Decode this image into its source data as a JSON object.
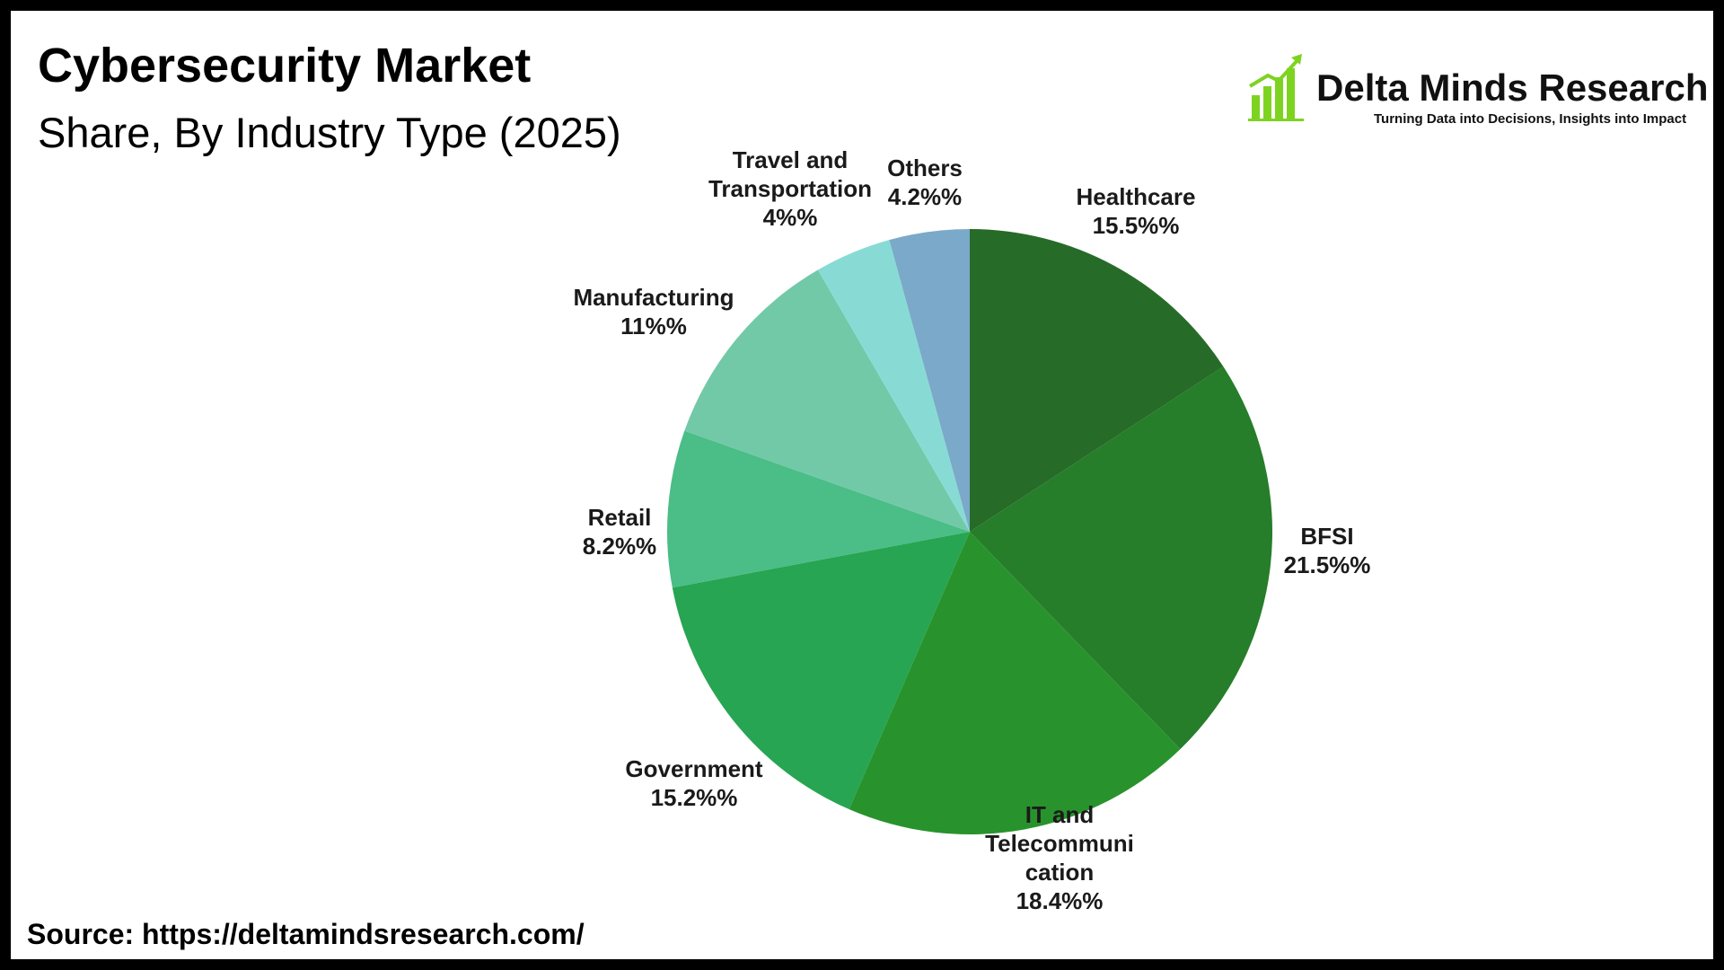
{
  "header": {
    "title": "Cybersecurity Market",
    "subtitle": "Share, By Industry Type (2025)"
  },
  "brand": {
    "name": "Delta Minds Research",
    "tagline": "Turning Data into Decisions, Insights into Impact",
    "logo_icon": "bar-chart-growth-icon",
    "logo_color": "#7ed321"
  },
  "footer": {
    "source": "Source: https://deltamindsresearch.com/"
  },
  "chart_data": {
    "type": "pie",
    "title": "Cybersecurity Market",
    "subtitle": "Share, By Industry Type (2025)",
    "start": "12 o'clock",
    "direction": "clockwise",
    "legend": "none",
    "slices": [
      {
        "name": "Healthcare",
        "label_lines": [
          "Healthcare",
          "15.5%%"
        ],
        "value": 15.5,
        "color": "#276b28"
      },
      {
        "name": "BFSI",
        "label_lines": [
          "BFSI",
          "21.5%%"
        ],
        "value": 21.5,
        "color": "#267d2a"
      },
      {
        "name": "IT and Telecommunication",
        "label_lines": [
          "IT and",
          "Telecommuni",
          "cation",
          "18.4%%"
        ],
        "value": 18.4,
        "color": "#28932c"
      },
      {
        "name": "Government",
        "label_lines": [
          "Government",
          "15.2%%"
        ],
        "value": 15.2,
        "color": "#27a552"
      },
      {
        "name": "Retail",
        "label_lines": [
          "Retail",
          "8.2%%"
        ],
        "value": 8.2,
        "color": "#4bbd86"
      },
      {
        "name": "Manufacturing",
        "label_lines": [
          "Manufacturing",
          "11%%"
        ],
        "value": 11,
        "color": "#72c9a8"
      },
      {
        "name": "Travel and Transportation",
        "label_lines": [
          "Travel and",
          "Transportation",
          "4%%"
        ],
        "value": 4,
        "color": "#88dbd5"
      },
      {
        "name": "Others",
        "label_lines": [
          "Others",
          "4.2%%"
        ],
        "value": 4.2,
        "color": "#7ba9c9"
      }
    ]
  }
}
